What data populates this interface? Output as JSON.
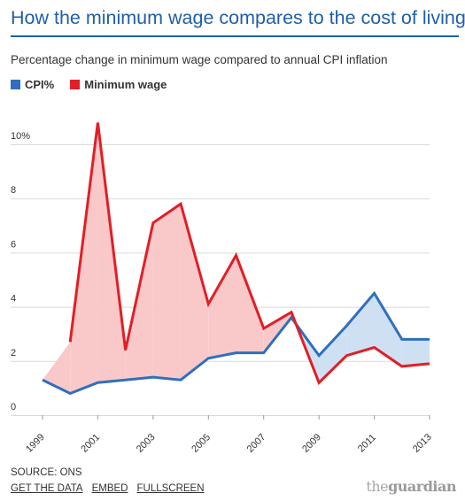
{
  "title": "How the minimum wage compares to the cost of living",
  "subtitle": "Percentage change in minimum wage compared to annual CPI inflation",
  "legend": {
    "cpi": "CPI%",
    "wage": "Minimum wage"
  },
  "colors": {
    "title": "#1f5fa8",
    "cpi": "#2f6fbf",
    "wage": "#e21e26",
    "wage_fill": "#f9c9c9",
    "cpi_fill": "#cfe0f3",
    "grid": "#d9d9d9"
  },
  "footer": {
    "source": "SOURCE: ONS",
    "get_data": "GET THE DATA",
    "embed": "EMBED",
    "fullscreen": "FULLSCREEN",
    "brand_prefix": "the",
    "brand_name": "guardian"
  },
  "chart_data": {
    "type": "line",
    "title": "How the minimum wage compares to the cost of living",
    "subtitle": "Percentage change in minimum wage compared to annual CPI inflation",
    "xlabel": "",
    "ylabel": "",
    "ylim": [
      0,
      10
    ],
    "xlim": [
      1999,
      2013
    ],
    "y_ticks": [
      0,
      2,
      4,
      6,
      8,
      10
    ],
    "y_tick_labels": [
      "0",
      "2",
      "4",
      "6",
      "8",
      "10%"
    ],
    "x_ticks": [
      1999,
      2001,
      2003,
      2005,
      2007,
      2009,
      2011,
      2013
    ],
    "x_tick_labels": [
      "1999",
      "2001",
      "2003",
      "2005",
      "2007",
      "2009",
      "2011",
      "2013"
    ],
    "grid": true,
    "legend_position": "top-left",
    "series": [
      {
        "name": "CPI%",
        "x": [
          1999,
          2000,
          2001,
          2002,
          2003,
          2004,
          2005,
          2006,
          2007,
          2008,
          2009,
          2010,
          2011,
          2012,
          2013
        ],
        "values": [
          1.3,
          0.8,
          1.2,
          1.3,
          1.4,
          1.3,
          2.1,
          2.3,
          2.3,
          3.6,
          2.2,
          3.3,
          4.5,
          2.8,
          2.8
        ]
      },
      {
        "name": "Minimum wage",
        "x": [
          2000,
          2001,
          2002,
          2003,
          2004,
          2005,
          2006,
          2007,
          2008,
          2009,
          2010,
          2011,
          2012,
          2013
        ],
        "values": [
          2.7,
          10.8,
          2.4,
          7.1,
          7.8,
          4.1,
          5.9,
          3.2,
          3.8,
          1.2,
          2.2,
          2.5,
          1.8,
          1.9
        ]
      }
    ]
  }
}
